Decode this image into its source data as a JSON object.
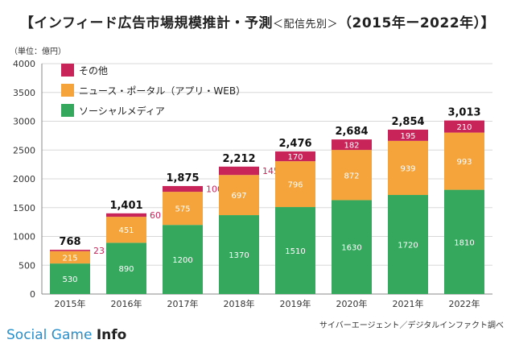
{
  "title": "【インフィード広告市場規模推計・予測",
  "title_sub": "＜配信先別＞",
  "title_years": "（2015年ー2022年）】",
  "unit_label": "（単位：億円）",
  "source": "サイバーエージェント／デジタルインファクト調べ",
  "logo": {
    "prefix": "Social Game ",
    "bold": "Info"
  },
  "chart_data": {
    "type": "bar",
    "stacked": true,
    "categories": [
      "2015年",
      "2016年",
      "2017年",
      "2018年",
      "2019年",
      "2020年",
      "2021年",
      "2022年"
    ],
    "series": [
      {
        "name": "ソーシャルメディア",
        "color": "#35a85e",
        "values": [
          530,
          890,
          1200,
          1370,
          1510,
          1630,
          1720,
          1810
        ]
      },
      {
        "name": "ニュース・ポータル（アプリ・WEB）",
        "color": "#f4a43a",
        "values": [
          215,
          451,
          575,
          697,
          796,
          872,
          939,
          993
        ]
      },
      {
        "name": "その他",
        "color": "#c9245a",
        "values": [
          23,
          60,
          100,
          145,
          170,
          182,
          195,
          210
        ]
      }
    ],
    "totals": [
      768,
      1401,
      1875,
      2212,
      2476,
      2684,
      2854,
      3013
    ],
    "ylim": [
      0,
      4000
    ],
    "yticks": [
      0,
      500,
      1000,
      1500,
      2000,
      2500,
      3000,
      3500,
      4000
    ],
    "legend": "top-left",
    "grid": true
  }
}
